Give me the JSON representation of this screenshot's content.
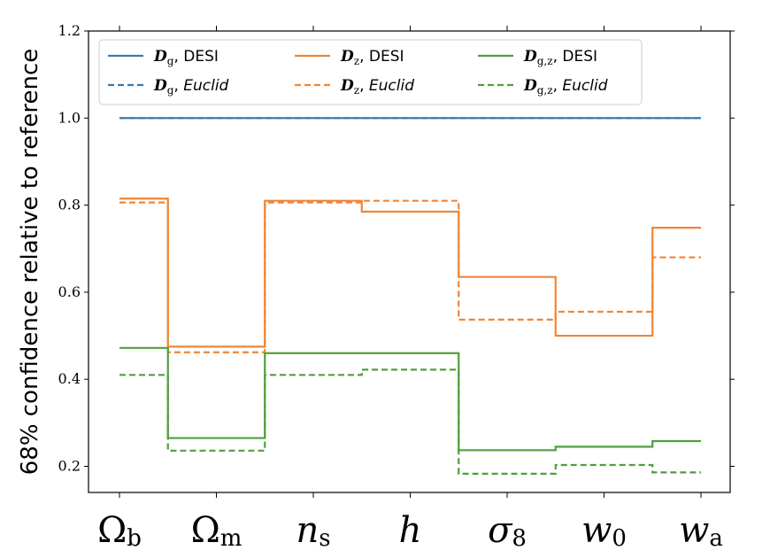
{
  "chart_data": {
    "type": "line",
    "title": "",
    "xlabel": "",
    "ylabel": "68% confidence relative to reference",
    "ylim": [
      0.14,
      1.2
    ],
    "yticks": [
      0.2,
      0.4,
      0.6,
      0.8,
      1.0,
      1.2
    ],
    "ytick_labels": [
      "0.2",
      "0.4",
      "0.6",
      "0.8",
      "1.0",
      "1.2"
    ],
    "categories": [
      {
        "base": "Ω",
        "sub": "b"
      },
      {
        "base": "Ω",
        "sub": "m"
      },
      {
        "base": "n",
        "sub": "s"
      },
      {
        "base": "h",
        "sub": ""
      },
      {
        "base": "σ",
        "sub": "8"
      },
      {
        "base": "w",
        "sub": "0"
      },
      {
        "base": "w",
        "sub": "a"
      }
    ],
    "legend": {
      "position": "upper-left",
      "ncol": 3
    },
    "grid": false,
    "series": [
      {
        "key": "Dg_desi",
        "sym": "D",
        "sub": "g",
        "survey": "DESI",
        "survey_italic": false,
        "color": "#3a76af",
        "dashed": false,
        "values": [
          1.0,
          1.0,
          1.0,
          1.0,
          1.0,
          1.0,
          1.0
        ]
      },
      {
        "key": "Dg_euclid",
        "sym": "D",
        "sub": "g",
        "survey": "Euclid",
        "survey_italic": true,
        "color": "#3a76af",
        "dashed": true,
        "values": [
          1.0,
          1.0,
          1.0,
          1.0,
          1.0,
          1.0,
          1.0
        ]
      },
      {
        "key": "Dz_desi",
        "sym": "D",
        "sub": "z",
        "survey": "DESI",
        "survey_italic": false,
        "color": "#ef8636",
        "dashed": false,
        "values": [
          0.815,
          0.475,
          0.81,
          0.785,
          0.635,
          0.5,
          0.748
        ]
      },
      {
        "key": "Dz_euclid",
        "sym": "D",
        "sub": "z",
        "survey": "Euclid",
        "survey_italic": true,
        "color": "#ef8636",
        "dashed": true,
        "values": [
          0.806,
          0.462,
          0.806,
          0.81,
          0.537,
          0.555,
          0.68
        ]
      },
      {
        "key": "Dgz_desi",
        "sym": "D",
        "sub": "g,z",
        "survey": "DESI",
        "survey_italic": false,
        "color": "#519e3e",
        "dashed": false,
        "values": [
          0.472,
          0.265,
          0.46,
          0.46,
          0.237,
          0.245,
          0.258
        ]
      },
      {
        "key": "Dgz_euclid",
        "sym": "D",
        "sub": "g,z",
        "survey": "Euclid",
        "survey_italic": true,
        "color": "#519e3e",
        "dashed": true,
        "values": [
          0.41,
          0.236,
          0.41,
          0.422,
          0.183,
          0.203,
          0.186
        ]
      }
    ]
  }
}
